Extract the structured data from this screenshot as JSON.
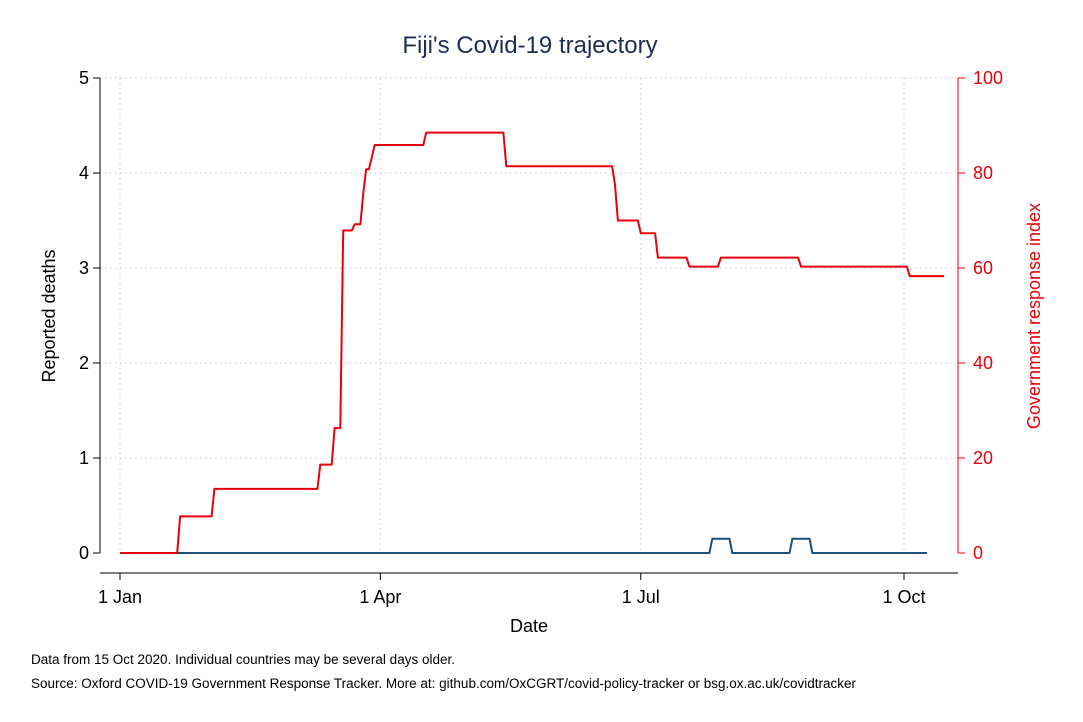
{
  "chart_data": {
    "type": "line",
    "title": "Fiji's Covid-19 trajectory",
    "xlabel": "Date",
    "ylabel_left": "Reported deaths",
    "ylabel_right": "Government response index",
    "x_ticks": [
      {
        "label": "1 Jan",
        "day": 0
      },
      {
        "label": "1 Apr",
        "day": 91
      },
      {
        "label": "1 Jul",
        "day": 182
      },
      {
        "label": "1 Oct",
        "day": 274
      }
    ],
    "y_left_ticks": [
      "0",
      "1",
      "2",
      "3",
      "4",
      "5"
    ],
    "y_right_ticks": [
      "0",
      "20",
      "40",
      "60",
      "80",
      "100"
    ],
    "ylim_left": [
      0,
      5
    ],
    "ylim_right": [
      0,
      100
    ],
    "xlim_days": [
      0,
      288
    ],
    "grid": true,
    "series": [
      {
        "name": "Reported deaths",
        "axis": "left",
        "color": "#1f4e79",
        "points": [
          [
            0,
            0
          ],
          [
            206,
            0
          ],
          [
            207,
            0.15
          ],
          [
            213,
            0.15
          ],
          [
            214,
            0
          ],
          [
            234,
            0
          ],
          [
            235,
            0.15
          ],
          [
            241,
            0.15
          ],
          [
            242,
            0
          ],
          [
            282,
            0
          ]
        ]
      },
      {
        "name": "Government response index",
        "axis": "right",
        "color": "#e8000b",
        "points": [
          [
            0,
            0
          ],
          [
            20,
            0
          ],
          [
            21,
            7.7
          ],
          [
            32,
            7.7
          ],
          [
            33,
            13.5
          ],
          [
            69,
            13.5
          ],
          [
            70,
            18.6
          ],
          [
            74,
            18.6
          ],
          [
            75,
            26.3
          ],
          [
            77,
            26.3
          ],
          [
            78,
            67.9
          ],
          [
            81,
            67.9
          ],
          [
            82,
            69.2
          ],
          [
            84,
            69.2
          ],
          [
            85,
            75.6
          ],
          [
            86,
            80.8
          ],
          [
            87,
            80.8
          ],
          [
            88,
            83.3
          ],
          [
            89,
            85.9
          ],
          [
            106,
            85.9
          ],
          [
            107,
            88.5
          ],
          [
            134,
            88.5
          ],
          [
            135,
            81.4
          ],
          [
            172,
            81.4
          ],
          [
            173,
            77.5
          ],
          [
            174,
            70.0
          ],
          [
            181,
            70.0
          ],
          [
            182,
            67.3
          ],
          [
            187,
            67.3
          ],
          [
            188,
            62.2
          ],
          [
            198,
            62.2
          ],
          [
            199,
            60.3
          ],
          [
            209,
            60.3
          ],
          [
            210,
            62.2
          ],
          [
            237,
            62.2
          ],
          [
            238,
            60.3
          ],
          [
            275,
            60.3
          ],
          [
            276,
            58.3
          ],
          [
            288,
            58.3
          ]
        ]
      }
    ]
  },
  "notes": {
    "line1": "Data from 15 Oct 2020. Individual countries may be several days older.",
    "line2": "Source: Oxford COVID-19 Government Response Tracker. More at: github.com/OxCGRT/covid-policy-tracker or bsg.ox.ac.uk/covidtracker"
  },
  "colors": {
    "title": "#1e2d4f",
    "left_series": "#1f4e79",
    "right_axis": "#e8000b",
    "grid": "#d9d9d9"
  }
}
